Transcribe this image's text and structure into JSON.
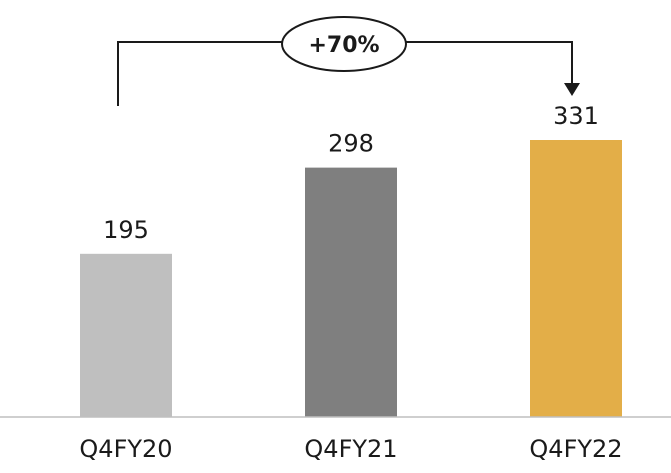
{
  "chart_data": {
    "type": "bar",
    "categories": [
      "Q4FY20",
      "Q4FY21",
      "Q4FY22"
    ],
    "values": [
      195,
      298,
      331
    ],
    "data_labels": [
      "195",
      "298",
      "331"
    ],
    "bar_colors": [
      "#bfbfbf",
      "#7f7f7f",
      "#e3ae48"
    ],
    "axis_color": "#bfbfbf",
    "text_color": "#1a1a1a",
    "grid": false,
    "legend": "none",
    "ylim": [
      0,
      400
    ],
    "annotation": {
      "text": "+70%",
      "from_category": "Q4FY20",
      "to_category": "Q4FY22"
    }
  }
}
